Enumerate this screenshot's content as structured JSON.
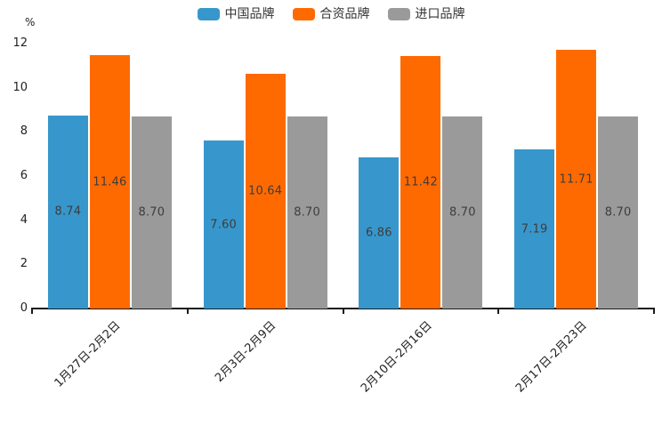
{
  "chart_data": {
    "type": "bar",
    "title": "",
    "categories": [
      "1月27日-2月2日",
      "2月3日-2月9日",
      "2月10日-2月16日",
      "2月17日-2月23日"
    ],
    "series": [
      {
        "name": "中国品牌",
        "color": "#3797CC",
        "values": [
          8.74,
          7.6,
          6.86,
          7.19
        ]
      },
      {
        "name": "合资品牌",
        "color": "#FF6A00",
        "values": [
          11.46,
          10.64,
          11.42,
          11.71
        ]
      },
      {
        "name": "进口品牌",
        "color": "#9A9A9A",
        "values": [
          8.7,
          8.7,
          8.7,
          8.7
        ]
      }
    ],
    "xlabel": "",
    "ylabel": "%",
    "ylim": [
      0,
      12
    ],
    "yticks": [
      0,
      2,
      4,
      6,
      8,
      10,
      12
    ],
    "grid": false,
    "legend_position": "top",
    "value_label_decimals": 2,
    "axis_color": "#1a1a1a",
    "label_color": "#3d3d3d"
  }
}
